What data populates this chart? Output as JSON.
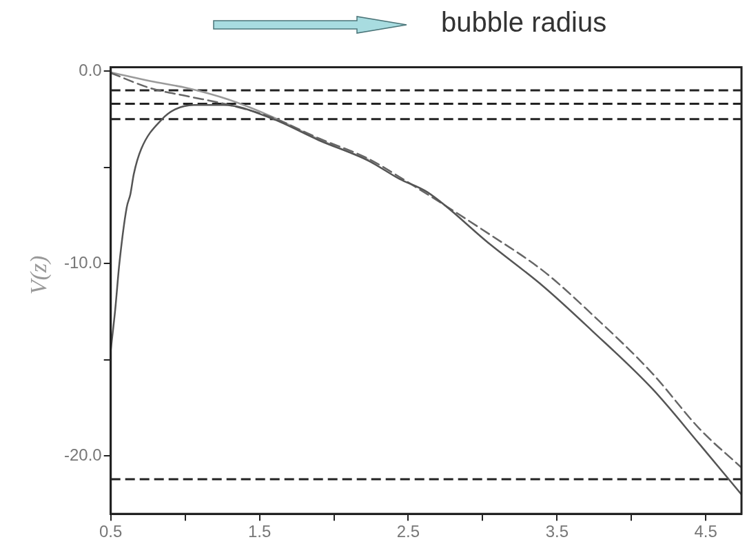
{
  "chart_data": {
    "type": "line",
    "title": "bubble radius",
    "ylabel": "V(z)",
    "xlim": [
      0.5,
      4.74
    ],
    "xticks": [
      0.5,
      {
        "value": 1.0,
        "label": null
      },
      1.5,
      {
        "value": 2.0,
        "label": null
      },
      2.5,
      {
        "value": 3.0,
        "label": null
      },
      3.5,
      {
        "value": 4.0,
        "label": null
      },
      4.5
    ],
    "ylim": [
      -23,
      0.2
    ],
    "yticks": [
      {
        "value": 0,
        "label": "0.0"
      },
      {
        "value": -5,
        "label": null
      },
      {
        "value": -10,
        "label": "-10.0"
      },
      {
        "value": -15,
        "label": null
      },
      {
        "value": -20,
        "label": "-20.0"
      }
    ],
    "grid": false,
    "legend": false,
    "marker": "none",
    "series": [
      {
        "color": "#555555",
        "line_style": "solid",
        "x": [
          0.5,
          0.53,
          0.558,
          0.607,
          0.632,
          0.655,
          0.705,
          0.845,
          0.93,
          1.06,
          1.26,
          1.58,
          1.9,
          2.23,
          2.44,
          2.63,
          3.05,
          3.41,
          3.73,
          4.14,
          4.46,
          4.74
        ],
        "values": [
          -14.5,
          -12.4,
          -10,
          -7.1,
          -6.4,
          -5.35,
          -4.05,
          -2.5,
          -2.0,
          -1.76,
          -1.76,
          -2.46,
          -3.6,
          -4.65,
          -5.6,
          -6.3,
          -9.0,
          -11.2,
          -13.45,
          -16.5,
          -19.4,
          -22.0
        ]
      },
      {
        "color": "#666666",
        "line_style": "dashed",
        "x": [
          0.5,
          0.77,
          1.01,
          1.29,
          1.58,
          1.9,
          2.23,
          2.44,
          3.05,
          3.41,
          3.73,
          4.14,
          4.46,
          4.74
        ],
        "values": [
          -0.1,
          -0.9,
          -1.3,
          -1.75,
          -2.4,
          -3.5,
          -4.55,
          -5.5,
          -8.5,
          -10.4,
          -12.6,
          -15.7,
          -18.6,
          -20.6
        ]
      },
      {
        "color": "#9a9a9a",
        "line_style": "solid",
        "x": [
          0.5,
          0.77,
          1.01,
          1.29,
          1.58,
          1.9,
          2.23
        ],
        "values": [
          -0.07,
          -0.53,
          -0.88,
          -1.48,
          -2.36,
          -3.55,
          -4.6
        ]
      }
    ],
    "ref_lines": [
      {
        "axis": "y",
        "value": -1.0,
        "color": "#222222",
        "line_style": "dashed"
      },
      {
        "axis": "y",
        "value": -1.7,
        "color": "#222222",
        "line_style": "dashed"
      },
      {
        "axis": "y",
        "value": -2.5,
        "color": "#222222",
        "line_style": "dashed"
      },
      {
        "axis": "y",
        "value": -21.2,
        "color": "#222222",
        "line_style": "dashed"
      }
    ]
  }
}
